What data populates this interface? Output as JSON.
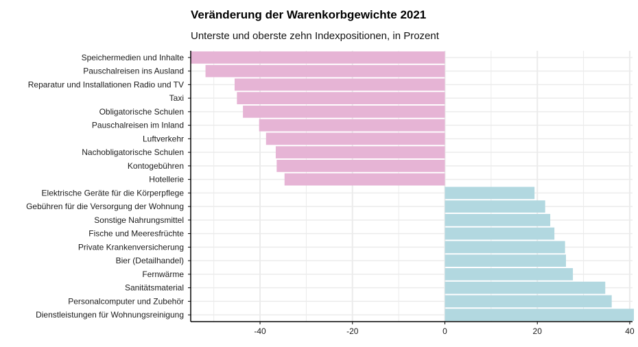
{
  "chart_data": {
    "type": "bar",
    "orientation": "horizontal",
    "title": "Veränderung der Warenkorbgewichte 2021",
    "subtitle": "Unterste und oberste zehn Indexpositionen, in Prozent",
    "xlabel": "",
    "ylabel": "",
    "xlim": [
      -55,
      40.6
    ],
    "xticks": [
      -40,
      -20,
      0,
      20,
      40
    ],
    "grid": true,
    "categories": [
      "Speichermedien und Inhalte",
      "Pauschalreisen ins Ausland",
      "Reparatur und Installationen Radio und TV",
      "Taxi",
      "Obligatorische Schulen",
      "Pauschalreisen im Inland",
      "Luftverkehr",
      "Nachobligatorische Schulen",
      "Kontogebühren",
      "Hotellerie",
      "Elektrische Geräte für die Körperpflege",
      "Gebühren für die Versorgung der Wohnung",
      "Sonstige Nahrungsmittel",
      "Fische und Meeresfrüchte",
      "Private Krankenversicherung",
      "Bier (Detailhandel)",
      "Fernwärme",
      "Sanitätsmaterial",
      "Personalcomputer und Zubehör",
      "Dienstleistungen für Wohnungsreinigung"
    ],
    "values": [
      -55.0,
      -51.8,
      -45.5,
      -45.0,
      -43.7,
      -40.2,
      -38.7,
      -36.6,
      -36.4,
      -34.7,
      19.4,
      21.7,
      22.8,
      23.7,
      26.0,
      26.2,
      27.7,
      34.7,
      36.1,
      40.9
    ],
    "colors": {
      "negative": "#e6b4d5",
      "positive": "#b2d8e0",
      "grid": "#ebebeb",
      "axis": "#000000"
    }
  }
}
